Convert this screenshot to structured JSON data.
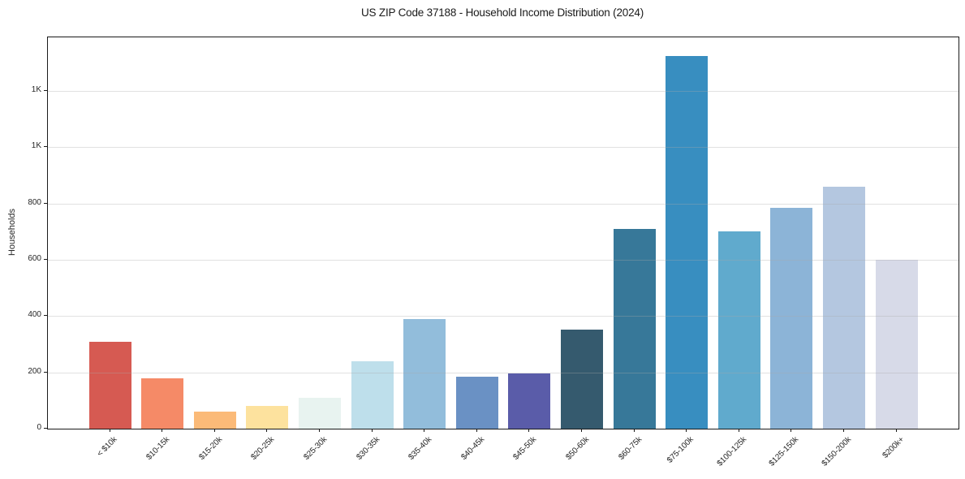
{
  "chart_data": {
    "type": "bar",
    "title": "US ZIP Code 37188 - Household Income Distribution (2024)",
    "xlabel": "",
    "ylabel": "Households",
    "categories": [
      "< $10k",
      "$10-15k",
      "$15-20k",
      "$20-25k",
      "$25-30k",
      "$30-35k",
      "$35-40k",
      "$40-45k",
      "$45-50k",
      "$50-60k",
      "$60-75k",
      "$75-100k",
      "$100-125k",
      "$125-150k",
      "$150-200k",
      "$200k+"
    ],
    "values": [
      310,
      180,
      60,
      80,
      110,
      238,
      390,
      185,
      196,
      352,
      710,
      1325,
      700,
      785,
      858,
      600
    ],
    "bar_colors": [
      "#d65a52",
      "#f58a67",
      "#fbba78",
      "#fde29e",
      "#e8f3f0",
      "#bedfeb",
      "#92bddb",
      "#6a91c4",
      "#5a5ca9",
      "#355a6e",
      "#377899",
      "#388ec0",
      "#60aacd",
      "#8cb4d7",
      "#b4c7e0",
      "#d7dae8"
    ],
    "ylim": [
      0,
      1390
    ],
    "yticks": [
      0,
      200,
      400,
      600,
      800,
      1000,
      1200
    ],
    "ytick_labels": [
      "0",
      "200",
      "400",
      "600",
      "800",
      "1K",
      "1K"
    ],
    "grid": "horizontal",
    "grid_over_bars": true,
    "legend": "none",
    "background_color": "#ffffff",
    "axis_color": "#1a1a1a",
    "grid_color": "#ebebeb",
    "text_color": "#262626"
  }
}
